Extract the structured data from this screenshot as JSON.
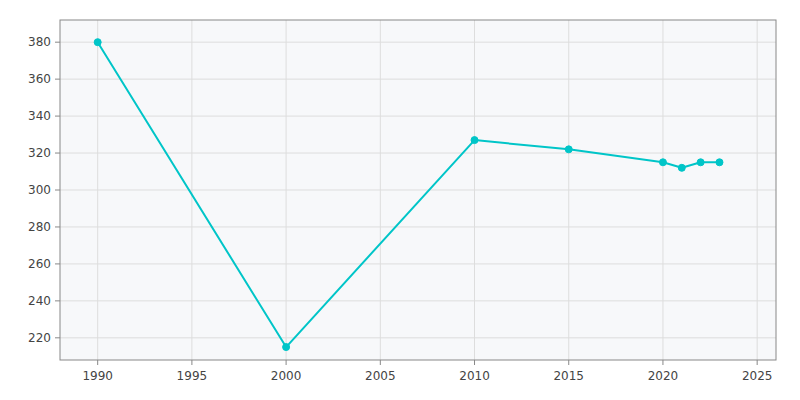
{
  "chart_data": {
    "type": "line",
    "x": [
      1990,
      2000,
      2010,
      2015,
      2020,
      2021,
      2022,
      2023
    ],
    "values": [
      380,
      215,
      327,
      322,
      315,
      312,
      315,
      315
    ],
    "color": "#00C5C8",
    "marker": "circle",
    "xlim": [
      1988,
      2026
    ],
    "ylim": [
      208,
      392
    ],
    "xticks": [
      1990,
      1995,
      2000,
      2005,
      2010,
      2015,
      2020,
      2025
    ],
    "yticks": [
      220,
      240,
      260,
      280,
      300,
      320,
      340,
      360,
      380
    ],
    "grid": true
  }
}
